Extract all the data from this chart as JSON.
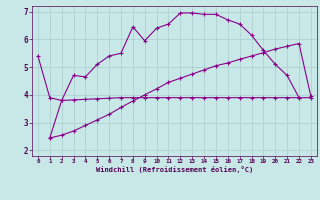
{
  "background_color": "#c8e8e8",
  "line_color": "#880088",
  "grid_color": "#aacccc",
  "xlabel": "Windchill (Refroidissement éolien,°C)",
  "xlim": [
    -0.5,
    23.5
  ],
  "ylim": [
    1.8,
    7.2
  ],
  "yticks": [
    2,
    3,
    4,
    5,
    6,
    7
  ],
  "xticks": [
    0,
    1,
    2,
    3,
    4,
    5,
    6,
    7,
    8,
    9,
    10,
    11,
    12,
    13,
    14,
    15,
    16,
    17,
    18,
    19,
    20,
    21,
    22,
    23
  ],
  "line1_x": [
    0,
    1,
    2,
    3,
    4,
    5,
    6,
    7,
    8,
    9,
    10,
    11,
    12,
    13,
    14,
    15,
    16,
    17,
    18,
    19,
    20,
    21,
    22
  ],
  "line1_y": [
    5.4,
    3.9,
    3.8,
    4.7,
    4.65,
    5.1,
    5.4,
    5.5,
    6.45,
    5.95,
    6.4,
    6.55,
    6.95,
    6.95,
    6.9,
    6.9,
    6.7,
    6.55,
    6.15,
    5.6,
    5.1,
    4.7,
    3.9
  ],
  "line2_x": [
    1,
    2,
    3,
    4,
    5,
    6,
    7,
    8,
    9,
    10,
    11,
    12,
    13,
    14,
    15,
    16,
    17,
    18,
    19,
    20,
    21,
    22,
    23
  ],
  "line2_y": [
    2.45,
    3.8,
    3.82,
    3.84,
    3.86,
    3.88,
    3.9,
    3.9,
    3.9,
    3.9,
    3.9,
    3.9,
    3.9,
    3.9,
    3.9,
    3.9,
    3.9,
    3.9,
    3.9,
    3.9,
    3.9,
    3.9,
    3.9
  ],
  "line3_x": [
    1,
    2,
    3,
    4,
    5,
    6,
    7,
    8,
    9,
    10,
    11,
    12,
    13,
    14,
    15,
    16,
    17,
    18,
    19,
    20,
    21,
    22,
    23
  ],
  "line3_y": [
    2.45,
    2.55,
    2.7,
    2.9,
    3.1,
    3.3,
    3.55,
    3.78,
    4.0,
    4.22,
    4.45,
    4.6,
    4.75,
    4.9,
    5.05,
    5.15,
    5.28,
    5.4,
    5.52,
    5.65,
    5.75,
    5.85,
    3.95
  ]
}
